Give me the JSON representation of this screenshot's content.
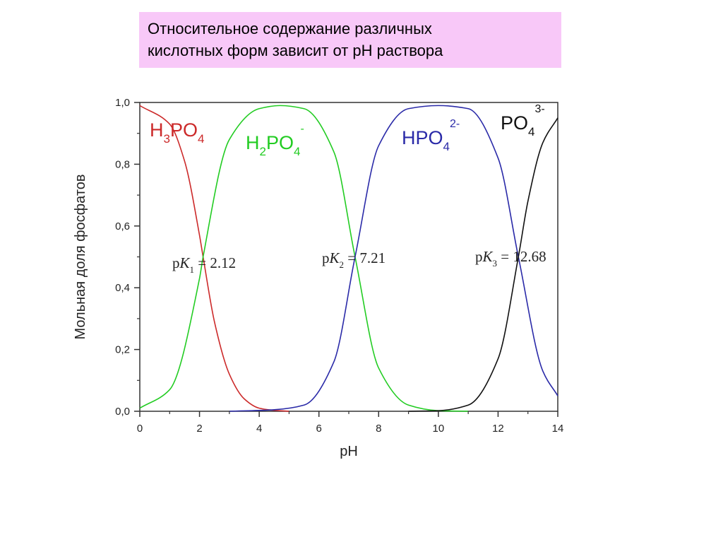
{
  "slide": {
    "title_lines": [
      "Относительное содержание различных",
      "кислотных форм зависит от pH раствора"
    ]
  },
  "chart_data": {
    "type": "line",
    "xlabel": "pH",
    "ylabel": "Мольная доля фосфатов",
    "xlim": [
      0,
      14
    ],
    "ylim": [
      0,
      1
    ],
    "x_ticks": [
      "0",
      "2",
      "4",
      "6",
      "8",
      "10",
      "12",
      "14"
    ],
    "y_ticks": [
      "0,0",
      "0,2",
      "0,4",
      "0,6",
      "0,8",
      "1,0"
    ],
    "pKa": [
      2.12,
      7.21,
      12.68
    ],
    "series": [
      {
        "species_id": "h3po4",
        "color": "#cc2a2a",
        "x": [
          0,
          1,
          1.5,
          2,
          2.12,
          2.5,
          3,
          3.5,
          4,
          4.5,
          5
        ],
        "y": [
          0.99,
          0.93,
          0.81,
          0.57,
          0.5,
          0.29,
          0.12,
          0.04,
          0.01,
          0.003,
          0.0
        ]
      },
      {
        "species_id": "h2po4",
        "color": "#22cc22",
        "x": [
          0,
          1,
          2,
          2.12,
          3,
          4,
          4.7,
          5.5,
          6.5,
          7.21,
          8,
          9,
          10,
          11
        ],
        "y": [
          0.01,
          0.07,
          0.43,
          0.5,
          0.88,
          0.98,
          0.99,
          0.98,
          0.84,
          0.5,
          0.14,
          0.02,
          0.002,
          0.0
        ]
      },
      {
        "species_id": "hpo4",
        "color": "#2a2aa8",
        "x": [
          3,
          4.5,
          5.5,
          6.5,
          7.21,
          8,
          9,
          10,
          11,
          12,
          12.68,
          13.5,
          14
        ],
        "y": [
          0.0,
          0.005,
          0.02,
          0.16,
          0.5,
          0.86,
          0.98,
          0.99,
          0.98,
          0.82,
          0.5,
          0.13,
          0.05
        ]
      },
      {
        "species_id": "po4",
        "color": "#111111",
        "x": [
          9,
          10,
          11,
          12,
          12.68,
          13,
          13.5,
          14
        ],
        "y": [
          0.0,
          0.002,
          0.02,
          0.17,
          0.5,
          0.68,
          0.87,
          0.95
        ]
      }
    ],
    "species_labels": [
      {
        "id": "h3po4",
        "color": "#cc2a2a",
        "base": "H",
        "sub1": "3",
        "mid": "PO",
        "sub2": "4",
        "sup": ""
      },
      {
        "id": "h2po4",
        "color": "#22cc22",
        "base": "H",
        "sub1": "2",
        "mid": "PO",
        "sub2": "4",
        "sup": "-"
      },
      {
        "id": "hpo4",
        "color": "#2a2aa8",
        "base": "HPO",
        "sub1": "",
        "mid": "",
        "sub2": "4",
        "sup": "2-"
      },
      {
        "id": "po4",
        "color": "#111111",
        "base": "PO",
        "sub1": "",
        "mid": "",
        "sub2": "4",
        "sup": "3-"
      }
    ],
    "annotations": [
      {
        "p": "p",
        "K": "K",
        "sub": "1",
        "value": "= 2.12"
      },
      {
        "p": "p",
        "K": "K",
        "sub": "2",
        "value": "= 7.21"
      },
      {
        "p": "p",
        "K": "K",
        "sub": "3",
        "value": "= 12.68"
      }
    ]
  }
}
